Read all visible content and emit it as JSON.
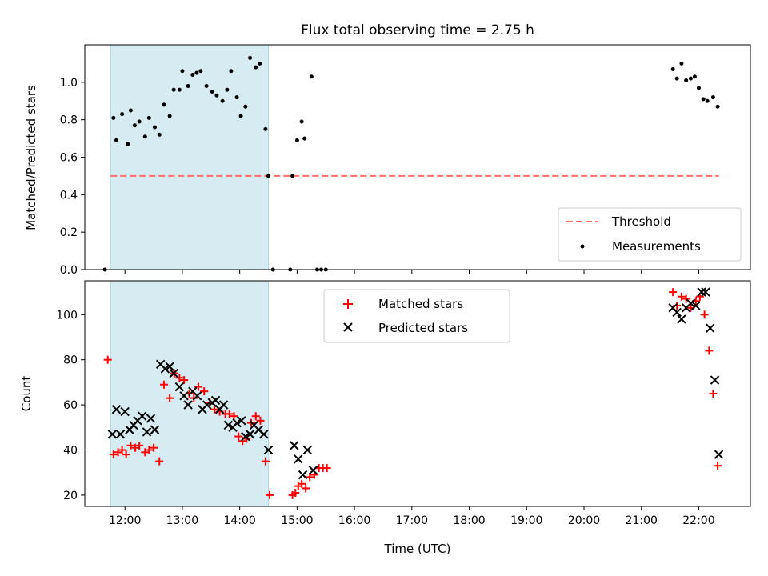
{
  "chart_data": [
    {
      "type": "scatter",
      "title": "Flux total observing time = 2.75 h",
      "ylabel": "Matched/Predicted stars",
      "xlabel": "",
      "xlim": [
        11.3,
        22.9
      ],
      "ylim": [
        0,
        1.2
      ],
      "yticks": [
        0,
        0.2,
        0.4,
        0.6,
        0.8,
        1.0
      ],
      "ytick_labels": [
        "0.0",
        "0.2",
        "0.4",
        "0.6",
        "0.8",
        "1.0"
      ],
      "shaded_region": {
        "x": [
          11.75,
          14.5
        ],
        "color": "#add8e6"
      },
      "threshold": {
        "name": "Threshold",
        "y": 0.5,
        "x": [
          11.75,
          22.35
        ],
        "color": "#ff6e6e",
        "style": "dashed"
      },
      "legend": {
        "position": "bottom-right",
        "entries": [
          "Threshold",
          "Measurements"
        ]
      },
      "series": [
        {
          "name": "Measurements",
          "color": "#000000",
          "marker": "dot",
          "x": [
            11.65,
            11.8,
            11.85,
            11.95,
            12.05,
            12.1,
            12.17,
            12.25,
            12.35,
            12.42,
            12.52,
            12.6,
            12.68,
            12.78,
            12.85,
            12.95,
            13.0,
            13.1,
            13.18,
            13.25,
            13.32,
            13.42,
            13.52,
            13.6,
            13.7,
            13.78,
            13.85,
            13.95,
            14.02,
            14.1,
            14.18,
            14.28,
            14.35,
            14.45,
            14.5,
            14.58,
            14.88,
            14.92,
            15.0,
            15.08,
            15.13,
            15.25,
            15.35,
            15.42,
            15.5,
            21.55,
            21.62,
            21.7,
            21.78,
            21.86,
            21.93,
            22.0,
            22.08,
            22.15,
            22.25,
            22.33
          ],
          "y": [
            0.0,
            0.81,
            0.69,
            0.83,
            0.67,
            0.85,
            0.77,
            0.79,
            0.71,
            0.81,
            0.76,
            0.72,
            0.88,
            0.82,
            0.96,
            0.96,
            1.06,
            0.98,
            1.04,
            1.05,
            1.06,
            0.98,
            0.95,
            0.93,
            0.9,
            0.96,
            1.06,
            0.92,
            0.82,
            0.87,
            1.13,
            1.08,
            1.1,
            0.75,
            0.5,
            0.0,
            0.0,
            0.5,
            0.69,
            0.79,
            0.7,
            1.03,
            0.0,
            0.0,
            0.0,
            1.07,
            1.02,
            1.1,
            1.01,
            1.02,
            1.03,
            0.97,
            0.91,
            0.9,
            0.92,
            0.87
          ]
        }
      ]
    },
    {
      "type": "scatter",
      "title": "",
      "ylabel": "Count",
      "xlabel": "Time (UTC)",
      "xlim": [
        11.3,
        22.9
      ],
      "ylim": [
        15,
        115
      ],
      "yticks": [
        20,
        40,
        60,
        80,
        100
      ],
      "ytick_labels": [
        "20",
        "40",
        "60",
        "80",
        "100"
      ],
      "xticks": [
        12,
        13,
        14,
        15,
        16,
        17,
        18,
        19,
        20,
        21,
        22
      ],
      "xtick_labels": [
        "12:00",
        "13:00",
        "14:00",
        "15:00",
        "16:00",
        "17:00",
        "18:00",
        "19:00",
        "20:00",
        "21:00",
        "22:00"
      ],
      "shaded_region": {
        "x": [
          11.75,
          14.5
        ],
        "color": "#add8e6"
      },
      "legend": {
        "position": "top-center",
        "entries": [
          "Matched stars",
          "Predicted stars"
        ]
      },
      "series": [
        {
          "name": "Matched stars",
          "color": "#ff0000",
          "marker": "plus",
          "x": [
            11.7,
            11.8,
            11.88,
            11.95,
            12.02,
            12.1,
            12.18,
            12.25,
            12.35,
            12.42,
            12.5,
            12.6,
            12.68,
            12.78,
            12.86,
            12.95,
            13.03,
            13.12,
            13.2,
            13.28,
            13.38,
            13.48,
            13.56,
            13.65,
            13.75,
            13.82,
            13.9,
            13.98,
            14.05,
            14.12,
            14.2,
            14.28,
            14.36,
            14.45,
            14.52,
            14.92,
            14.97,
            15.02,
            15.08,
            15.15,
            15.22,
            15.3,
            15.38,
            15.45,
            15.52,
            21.55,
            21.62,
            21.7,
            21.78,
            21.86,
            21.95,
            22.02,
            22.1,
            22.18,
            22.25,
            22.33
          ],
          "y": [
            80,
            38,
            39,
            40,
            38,
            42,
            41,
            42,
            39,
            40,
            41,
            35,
            69,
            63,
            74,
            72,
            71,
            65,
            63,
            68,
            66,
            61,
            58,
            57,
            56,
            56,
            55,
            46,
            44,
            45,
            52,
            55,
            53,
            35,
            20,
            20,
            21,
            24,
            25,
            23,
            28,
            29,
            32,
            32,
            32,
            110,
            104,
            108,
            107,
            103,
            106,
            108,
            100,
            84,
            65,
            33
          ]
        },
        {
          "name": "Predicted stars",
          "color": "#000000",
          "marker": "x",
          "x": [
            11.78,
            11.85,
            11.92,
            12.0,
            12.08,
            12.15,
            12.22,
            12.3,
            12.38,
            12.45,
            12.52,
            12.62,
            12.7,
            12.78,
            12.85,
            12.95,
            13.03,
            13.1,
            13.18,
            13.26,
            13.35,
            13.43,
            13.52,
            13.58,
            13.65,
            13.72,
            13.8,
            13.88,
            13.95,
            14.03,
            14.1,
            14.18,
            14.25,
            14.33,
            14.42,
            14.5,
            14.95,
            15.02,
            15.1,
            15.18,
            15.28,
            21.55,
            21.62,
            21.7,
            21.78,
            21.86,
            21.95,
            22.05,
            22.12,
            22.2,
            22.28,
            22.35
          ],
          "y": [
            47,
            58,
            47,
            57,
            49,
            51,
            53,
            55,
            48,
            54,
            49,
            78,
            76,
            77,
            74,
            68,
            64,
            60,
            66,
            64,
            58,
            60,
            61,
            62,
            58,
            60,
            51,
            50,
            52,
            53,
            46,
            47,
            51,
            49,
            47,
            40,
            42,
            36,
            29,
            40,
            31,
            103,
            101,
            98,
            103,
            105,
            104,
            110,
            110,
            94,
            71,
            38
          ]
        }
      ]
    }
  ]
}
